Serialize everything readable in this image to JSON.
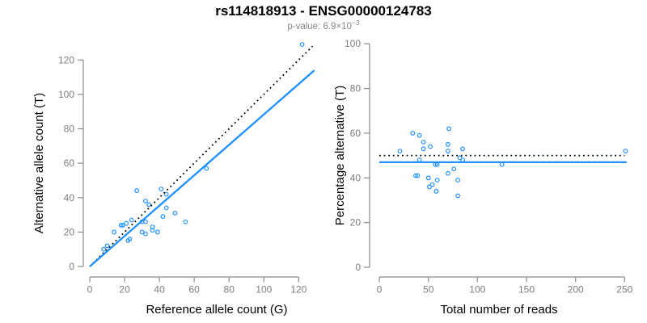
{
  "header": {
    "title": "rs114818913 - ENSG00000124783",
    "pvalue_text": "p-value: 6.9×10",
    "pvalue_exponent": "−3"
  },
  "colors": {
    "accent_blue": "#1E90FF",
    "axis_gray": "#8b8b8b",
    "tick_label_gray": "#7d7d7d",
    "subtitle_gray": "#878787",
    "black": "#000000"
  },
  "chart_data": [
    {
      "type": "scatter",
      "name": "allele-counts-plot",
      "xlabel": "Reference allele count (G)",
      "ylabel": "Alternative allele count (T)",
      "xlim": [
        0,
        128
      ],
      "ylim": [
        0,
        130
      ],
      "xticks": [
        0,
        20,
        40,
        60,
        80,
        100,
        120
      ],
      "yticks": [
        0,
        20,
        40,
        60,
        80,
        100,
        120
      ],
      "grid": false,
      "point_color": "#1E90FF",
      "axis_color": "#8b8b8b",
      "tick_color": "#7d7d7d",
      "points": [
        [
          8,
          10
        ],
        [
          10,
          12
        ],
        [
          14,
          20
        ],
        [
          18,
          24
        ],
        [
          19,
          24
        ],
        [
          21,
          25
        ],
        [
          22,
          15
        ],
        [
          23,
          16
        ],
        [
          24,
          27
        ],
        [
          27,
          44
        ],
        [
          30,
          20
        ],
        [
          30,
          26
        ],
        [
          32,
          19
        ],
        [
          32,
          26
        ],
        [
          32,
          38
        ],
        [
          34,
          36
        ],
        [
          36,
          21
        ],
        [
          36,
          23
        ],
        [
          39,
          20
        ],
        [
          41,
          45
        ],
        [
          42,
          29
        ],
        [
          44,
          34
        ],
        [
          44,
          42
        ],
        [
          49,
          31
        ],
        [
          55,
          26
        ],
        [
          67,
          57
        ],
        [
          122,
          129
        ]
      ],
      "lines": [
        {
          "name": "identity-line",
          "style": "dotted",
          "color": "#000000",
          "from": [
            0,
            0
          ],
          "to": [
            128,
            128
          ]
        },
        {
          "name": "regression-line",
          "style": "solid",
          "color": "#1E90FF",
          "from": [
            0,
            0
          ],
          "to": [
            129,
            114
          ]
        }
      ]
    },
    {
      "type": "scatter",
      "name": "percentage-vs-reads-plot",
      "xlabel": "Total number of reads",
      "ylabel": "Percentage alternative (T)",
      "xlim": [
        0,
        255
      ],
      "ylim": [
        0,
        100
      ],
      "xticks": [
        0,
        50,
        100,
        150,
        200,
        250
      ],
      "yticks": [
        0,
        20,
        40,
        60,
        80,
        100
      ],
      "grid": false,
      "point_color": "#1E90FF",
      "axis_color": "#8b8b8b",
      "tick_color": "#7d7d7d",
      "points": [
        [
          21,
          52
        ],
        [
          34,
          60
        ],
        [
          37,
          41
        ],
        [
          39,
          41
        ],
        [
          41,
          48
        ],
        [
          41,
          59
        ],
        [
          45,
          53
        ],
        [
          45,
          56
        ],
        [
          50,
          40
        ],
        [
          51,
          36
        ],
        [
          52,
          54
        ],
        [
          54,
          37
        ],
        [
          57,
          46
        ],
        [
          58,
          34
        ],
        [
          59,
          39
        ],
        [
          59,
          46
        ],
        [
          70,
          42
        ],
        [
          70,
          52
        ],
        [
          70,
          55
        ],
        [
          71,
          62
        ],
        [
          76,
          44
        ],
        [
          80,
          32
        ],
        [
          80,
          39
        ],
        [
          82,
          49
        ],
        [
          85,
          48
        ],
        [
          85,
          53
        ],
        [
          125,
          46
        ],
        [
          251,
          52
        ]
      ],
      "lines": [
        {
          "name": "expected-ratio-line",
          "style": "dotted",
          "color": "#000000",
          "from": [
            0,
            50
          ],
          "to": [
            250,
            50
          ]
        },
        {
          "name": "fitted-ratio-line",
          "style": "solid",
          "color": "#1E90FF",
          "from": [
            0,
            47
          ],
          "to": [
            252,
            47
          ]
        }
      ]
    }
  ]
}
